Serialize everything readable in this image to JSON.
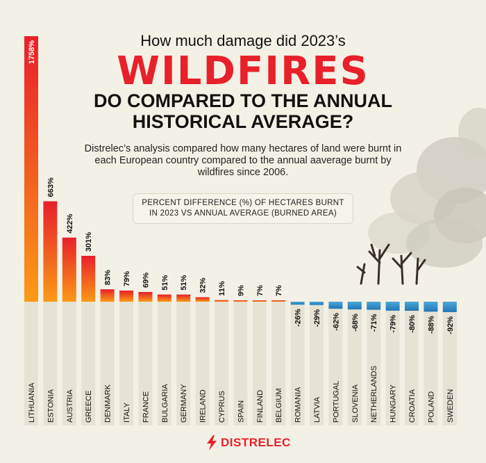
{
  "title": {
    "line1": "How much damage did 2023’s",
    "line2": "WILDFIRES",
    "line3": "DO COMPARED TO THE ANNUAL",
    "line4": "HISTORICAL AVERAGE?"
  },
  "description": "Distrelec’s analysis compared how many hectares of land were burnt in each European country compared to the annual aaverage burnt by wildfires since 2006.",
  "metric_label_line1": "PERCENT DIFFERENCE (%) OF HECTARES BURNT",
  "metric_label_line2": "IN 2023 VS ANNUAL AVERAGE (BURNED AREA)",
  "brand": "DISTRELEC",
  "colors": {
    "positive_top": "#e81f2a",
    "positive_bottom": "#fb9a16",
    "negative_top": "#4aa7d8",
    "negative_bottom": "#2477b5",
    "column_bg": "#e6e3d4",
    "brand_red": "#e8202a"
  },
  "chart_data": {
    "type": "bar",
    "categories": [
      "LITHUANIA",
      "ESTONIA",
      "AUSTRIA",
      "GREECE",
      "DENMARK",
      "ITALY",
      "FRANCE",
      "BULGARIA",
      "GERMANY",
      "IRELAND",
      "CYPRUS",
      "SPAIN",
      "FINLAND",
      "BELGIUM",
      "ROMANIA",
      "LATVIA",
      "PORTUGAL",
      "SLOVENIA",
      "NETHERLANDS",
      "HUNGARY",
      "CROATIA",
      "POLAND",
      "SWEDEN"
    ],
    "values": [
      1758,
      663,
      422,
      301,
      83,
      79,
      69,
      51,
      51,
      32,
      11,
      9,
      7,
      7,
      -26,
      -29,
      -62,
      -68,
      -71,
      -79,
      -80,
      -88,
      -92
    ],
    "value_labels": [
      "1758%",
      "663%",
      "422%",
      "301%",
      "83%",
      "79%",
      "69%",
      "51%",
      "51%",
      "32%",
      "11%",
      "9%",
      "7%",
      "7%",
      "-26%",
      "-29%",
      "-62%",
      "-68%",
      "-71%",
      "-79%",
      "-80%",
      "-88%",
      "-92%"
    ],
    "title": "",
    "xlabel": "",
    "ylabel": "PERCENT DIFFERENCE (%) OF HECTARES BURNT IN 2023 VS ANNUAL AVERAGE (BURNED AREA)",
    "grid": false,
    "legend": "none"
  }
}
